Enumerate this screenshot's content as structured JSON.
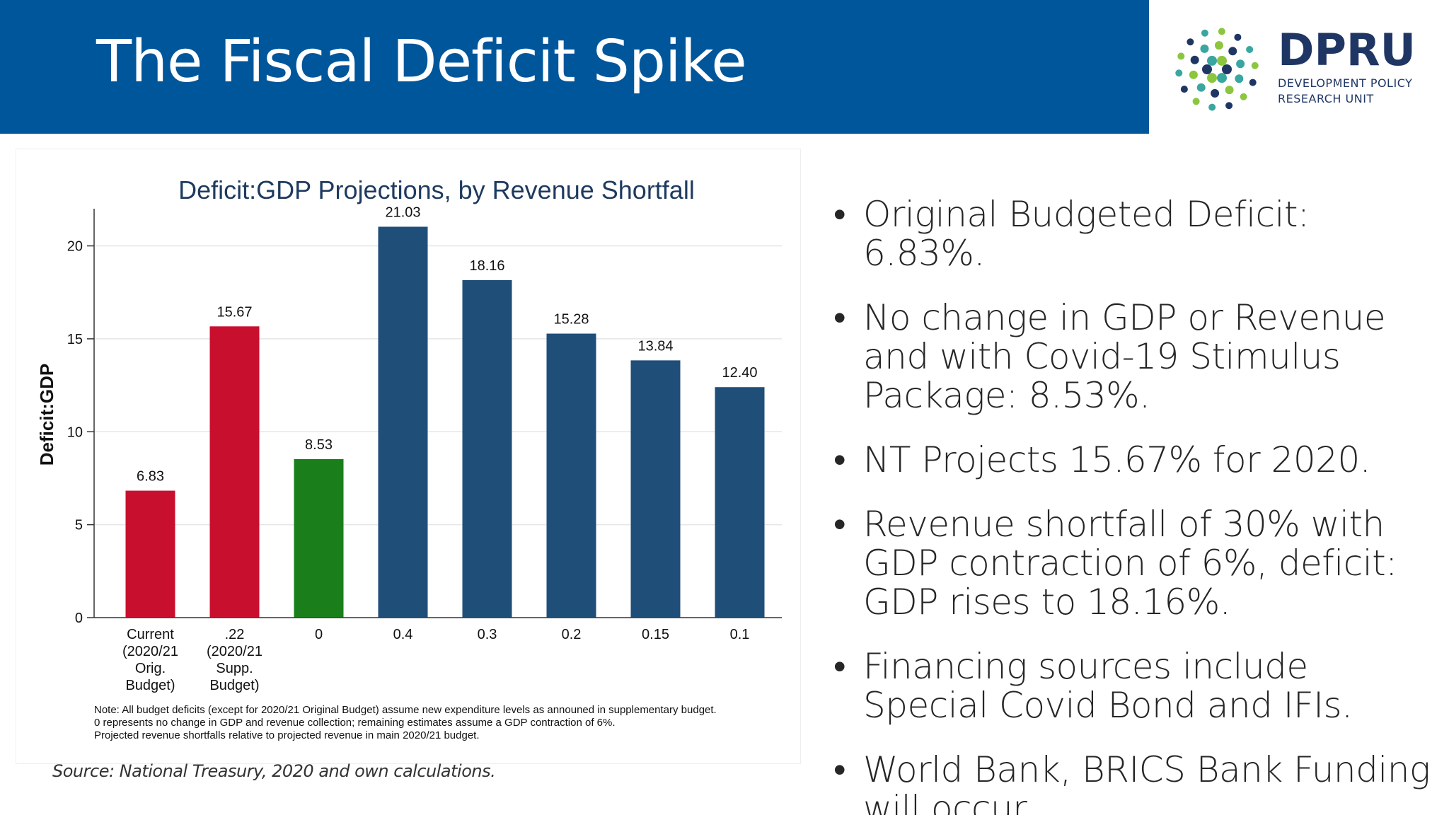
{
  "slide": {
    "title": "The Fiscal Deficit Spike",
    "source": "Source: National Treasury, 2020 and own calculations."
  },
  "logo": {
    "name": "DPRU",
    "line1": "DEVELOPMENT POLICY",
    "line2": "RESEARCH UNIT",
    "colors": {
      "navy": "#1f3664",
      "teal": "#3aa6a0",
      "green": "#8cc63f"
    }
  },
  "bullets": [
    "Original Budgeted Deficit: 6.83%.",
    "No change in GDP or Revenue and with Covid-19 Stimulus Package: 8.53%.",
    "NT Projects 15.67% for 2020.",
    "Revenue shortfall of 30% with GDP contraction of 6%, deficit: GDP rises to 18.16%.",
    "Financing sources include Special Covid Bond and IFIs.",
    "World Bank, BRICS Bank Funding will occur"
  ],
  "bullet_symbol": "•",
  "chart_data": {
    "type": "bar",
    "title": "Deficit:GDP Projections, by Revenue Shortfall",
    "ylabel": "Deficit:GDP",
    "xlabel": "",
    "ylim": [
      0,
      22
    ],
    "yticks": [
      0,
      5,
      10,
      15,
      20
    ],
    "grid": true,
    "categories": [
      [
        "Current",
        "(2020/21",
        "Orig.",
        "Budget)"
      ],
      [
        ".22",
        "(2020/21",
        "Supp.",
        "Budget)"
      ],
      [
        "0"
      ],
      [
        "0.4"
      ],
      [
        "0.3"
      ],
      [
        "0.2"
      ],
      [
        "0.15"
      ],
      [
        "0.1"
      ]
    ],
    "values": [
      6.83,
      15.67,
      8.53,
      21.03,
      18.16,
      15.28,
      13.84,
      12.4
    ],
    "value_labels": [
      "6.83",
      "15.67",
      "8.53",
      "21.03",
      "18.16",
      "15.28",
      "13.84",
      "12.40"
    ],
    "colors": [
      "#c8102e",
      "#c8102e",
      "#1a7f1a",
      "#1f4e79",
      "#1f4e79",
      "#1f4e79",
      "#1f4e79",
      "#1f4e79"
    ],
    "note": [
      "Note: All budget deficits (except for 2020/21 Original Budget) assume new expenditure levels as announed in supplementary budget.",
      "0 represents no change in GDP and revenue collection; remaining estimates assume a GDP contraction of 6%.",
      "Projected revenue shortfalls relative to projected revenue in main 2020/21 budget."
    ]
  }
}
